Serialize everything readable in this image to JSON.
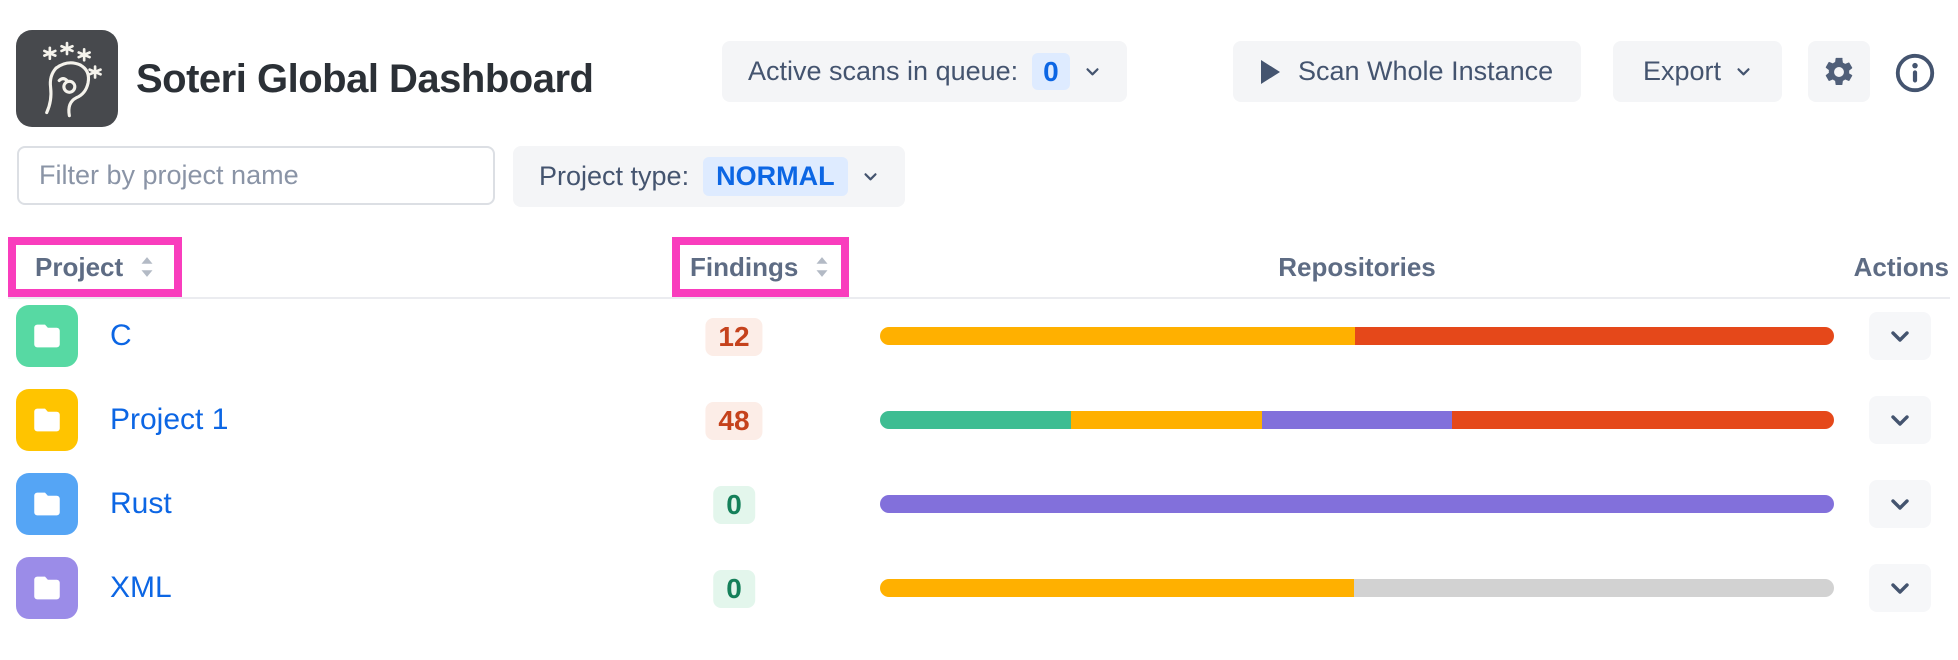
{
  "header": {
    "app_title": "Soteri Global Dashboard",
    "active_scans_label": "Active scans in queue:",
    "active_scans_count": "0",
    "scan_button_label": "Scan Whole Instance",
    "export_label": "Export"
  },
  "filters": {
    "project_filter_placeholder": "Filter by project name",
    "project_type_label": "Project type:",
    "project_type_value": "NORMAL"
  },
  "table": {
    "columns": {
      "project": "Project",
      "findings": "Findings",
      "repositories": "Repositories",
      "actions": "Actions"
    },
    "rows": [
      {
        "name": "C",
        "findings": "12",
        "findings_kind": "bad",
        "folder_color": "#57D9A3",
        "bar": [
          {
            "color": "#FFB000",
            "pct": 49.8
          },
          {
            "color": "#E5481A",
            "pct": 50.2
          }
        ]
      },
      {
        "name": "Project 1",
        "findings": "48",
        "findings_kind": "bad",
        "folder_color": "#FFC400",
        "bar": [
          {
            "color": "#3EBD92",
            "pct": 20
          },
          {
            "color": "#FFB000",
            "pct": 20
          },
          {
            "color": "#8270DB",
            "pct": 20
          },
          {
            "color": "#E5481A",
            "pct": 40
          }
        ]
      },
      {
        "name": "Rust",
        "findings": "0",
        "findings_kind": "good",
        "folder_color": "#55A5F5",
        "bar": [
          {
            "color": "#8270DB",
            "pct": 100
          }
        ]
      },
      {
        "name": "XML",
        "findings": "0",
        "findings_kind": "good",
        "folder_color": "#9B8CE8",
        "bar": [
          {
            "color": "#FFB000",
            "pct": 49.7
          },
          {
            "color": "#D2D2D2",
            "pct": 50.3
          }
        ]
      }
    ]
  },
  "colors": {
    "accent_blue": "#0C66E4",
    "blue_badge_bg": "#DEEBFF",
    "button_bg": "#F4F5F7",
    "button_text": "#44546F",
    "findings_bad_text": "#C5421C",
    "findings_bad_bg": "#FCEDE7",
    "findings_good_text": "#15805A",
    "findings_good_bg": "#E3F6EC",
    "annotation_highlight": "#F93DBD",
    "logo_bg": "#47494D"
  }
}
